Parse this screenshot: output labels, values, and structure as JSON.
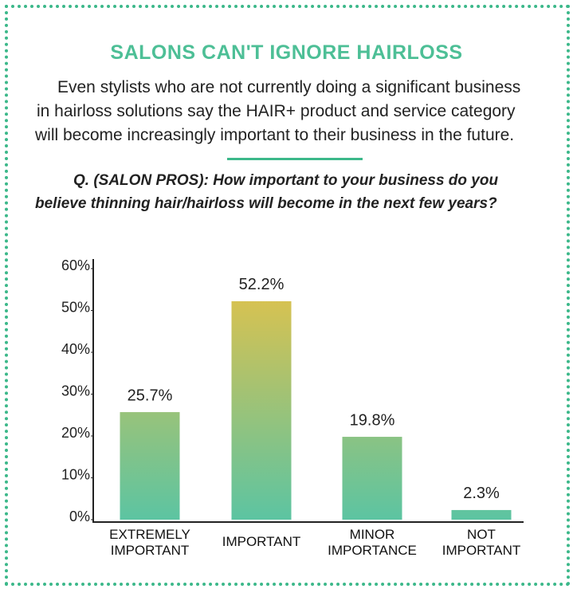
{
  "header": {
    "title": "SALONS CAN'T IGNORE HAIRLOSS",
    "paragraph": [
      "Even stylists who are not currently doing a significant business",
      "in hairloss solutions say the HAIR+ product and service category",
      "will become increasingly important to their business in the future."
    ],
    "question": [
      "Q. (SALON PROS): How important to your business do you",
      "believe thinning hair/hairloss will become in the next few years?"
    ]
  },
  "chart_data": {
    "type": "bar",
    "categories": [
      "EXTREMELY IMPORTANT",
      "IMPORTANT",
      "MINOR IMPORTANCE",
      "NOT IMPORTANT"
    ],
    "values": [
      25.7,
      52.2,
      19.8,
      2.3
    ],
    "value_labels": [
      "25.7%",
      "52.2%",
      "19.8%",
      "2.3%"
    ],
    "color": [
      "#e8c146",
      "#5cc4a2"
    ],
    "ylim": [
      0,
      60
    ],
    "yticks": [
      {
        "value": 0,
        "label": "0%"
      },
      {
        "value": 10,
        "label": "10%"
      },
      {
        "value": 20,
        "label": "20%"
      },
      {
        "value": 30,
        "label": "30%"
      },
      {
        "value": 40,
        "label": "40%"
      },
      {
        "value": 50,
        "label": "50%"
      },
      {
        "value": 60,
        "label": "60%"
      }
    ],
    "grid": false
  }
}
